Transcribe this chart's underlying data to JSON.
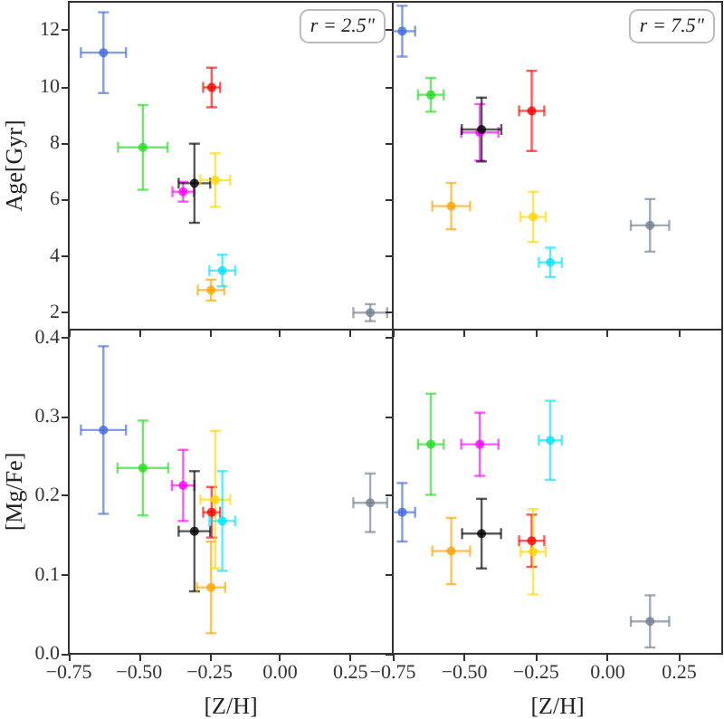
{
  "chart_data": [
    {
      "type": "scatter",
      "ylabel": "Age[Gyr]",
      "annotations": [
        "r = 2.5\""
      ],
      "marker": "circle",
      "tick_labels": "y",
      "xlim": [
        -0.75,
        0.4
      ],
      "ylim": [
        1.4,
        13
      ],
      "xticks": [
        -0.75,
        -0.5,
        -0.25,
        0,
        0.25
      ],
      "yticks": [
        2,
        4,
        6,
        8,
        10,
        12
      ],
      "series": [
        {
          "color": "#4169e1",
          "x": [
            -0.627
          ],
          "values": [
            11.2
          ],
          "errors": [
            1.43
          ],
          "xerrors": [
            0.08
          ]
        },
        {
          "color": "#22dd22",
          "x": [
            -0.487
          ],
          "values": [
            7.85
          ],
          "errors": [
            1.5
          ],
          "xerrors": [
            0.088
          ]
        },
        {
          "color": "#ff00ff",
          "x": [
            -0.344
          ],
          "values": [
            6.28
          ],
          "errors": [
            0.35
          ],
          "xerrors": [
            0.038
          ]
        },
        {
          "color": "#ff0000",
          "x": [
            -0.243
          ],
          "values": [
            9.97
          ],
          "errors": [
            0.7
          ],
          "xerrors": [
            0.03
          ]
        },
        {
          "color": "#000000",
          "x": [
            -0.304
          ],
          "values": [
            6.58
          ],
          "errors": [
            1.4
          ],
          "xerrors": [
            0.056
          ]
        },
        {
          "color": "#ffa500",
          "x": [
            -0.245
          ],
          "values": [
            2.8
          ],
          "errors": [
            0.37
          ],
          "xerrors": [
            0.047
          ]
        },
        {
          "color": "#ffd700",
          "x": [
            -0.23
          ],
          "values": [
            6.69
          ],
          "errors": [
            0.95
          ],
          "xerrors": [
            0.053
          ]
        },
        {
          "color": "#00e5ff",
          "x": [
            -0.205
          ],
          "values": [
            3.49
          ],
          "errors": [
            0.56
          ],
          "xerrors": [
            0.046
          ]
        },
        {
          "color": "#708090",
          "x": [
            0.32
          ],
          "values": [
            2.0
          ],
          "errors": [
            0.3
          ],
          "xerrors": [
            0.06
          ]
        }
      ]
    },
    {
      "type": "scatter",
      "annotations": [
        "r = 7.5\""
      ],
      "marker": "circle",
      "tick_labels": false,
      "xlim": [
        -0.75,
        0.4
      ],
      "ylim": [
        1.4,
        13
      ],
      "xticks": [
        -0.75,
        -0.5,
        -0.25,
        0,
        0.25
      ],
      "yticks": [
        2,
        4,
        6,
        8,
        10,
        12
      ],
      "series": [
        {
          "color": "#4169e1",
          "x": [
            -0.717
          ],
          "values": [
            11.96
          ],
          "errors": [
            0.9
          ],
          "xerrors": [
            0.045
          ]
        },
        {
          "color": "#22dd22",
          "x": [
            -0.617
          ],
          "values": [
            9.71
          ],
          "errors": [
            0.6
          ],
          "xerrors": [
            0.045
          ]
        },
        {
          "color": "#ff00ff",
          "x": [
            -0.446
          ],
          "values": [
            8.38
          ],
          "errors": [
            1.0
          ],
          "xerrors": [
            0.065
          ]
        },
        {
          "color": "#ff0000",
          "x": [
            -0.265
          ],
          "values": [
            9.14
          ],
          "errors": [
            1.42
          ],
          "xerrors": [
            0.044
          ]
        },
        {
          "color": "#000000",
          "x": [
            -0.44
          ],
          "values": [
            8.48
          ],
          "errors": [
            1.13
          ],
          "xerrors": [
            0.069
          ]
        },
        {
          "color": "#ffa500",
          "x": [
            -0.546
          ],
          "values": [
            5.77
          ],
          "errors": [
            0.82
          ],
          "xerrors": [
            0.066
          ]
        },
        {
          "color": "#ffd700",
          "x": [
            -0.26
          ],
          "values": [
            5.39
          ],
          "errors": [
            0.89
          ],
          "xerrors": [
            0.044
          ]
        },
        {
          "color": "#00e5ff",
          "x": [
            -0.2
          ],
          "values": [
            3.78
          ],
          "errors": [
            0.52
          ],
          "xerrors": [
            0.04
          ]
        },
        {
          "color": "#708090",
          "x": [
            0.148
          ],
          "values": [
            5.09
          ],
          "errors": [
            0.93
          ],
          "xerrors": [
            0.067
          ]
        }
      ]
    },
    {
      "type": "scatter",
      "xlabel": "[Z/H]",
      "ylabel": "[Mg/Fe]",
      "marker": "circle",
      "xlim": [
        -0.75,
        0.4
      ],
      "ylim": [
        0,
        0.41
      ],
      "xticks": [
        {
          "value": -0.75,
          "label": "−0.75"
        },
        {
          "value": -0.5,
          "label": "−0.50"
        },
        {
          "value": -0.25,
          "label": "−0.25"
        },
        {
          "value": 0,
          "label": "0.00"
        },
        {
          "value": 0.25,
          "label": "0.25"
        }
      ],
      "yticks": [
        {
          "value": 0,
          "label": "0.0"
        },
        0.1,
        0.2,
        0.3,
        0.4
      ],
      "series": [
        {
          "color": "#4169e1",
          "x": [
            -0.627
          ],
          "values": [
            0.283
          ],
          "errors": [
            0.106
          ],
          "xerrors": [
            0.08
          ]
        },
        {
          "color": "#22dd22",
          "x": [
            -0.487
          ],
          "values": [
            0.235
          ],
          "errors": [
            0.06
          ],
          "xerrors": [
            0.09
          ]
        },
        {
          "color": "#ff00ff",
          "x": [
            -0.344
          ],
          "values": [
            0.213
          ],
          "errors": [
            0.045
          ],
          "xerrors": [
            0.04
          ]
        },
        {
          "color": "#ff0000",
          "x": [
            -0.243
          ],
          "values": [
            0.179
          ],
          "errors": [
            0.032
          ],
          "xerrors": [
            0.03
          ]
        },
        {
          "color": "#000000",
          "x": [
            -0.304
          ],
          "values": [
            0.155
          ],
          "errors": [
            0.076
          ],
          "xerrors": [
            0.056
          ]
        },
        {
          "color": "#ffa500",
          "x": [
            -0.245
          ],
          "values": [
            0.084
          ],
          "errors": [
            0.058
          ],
          "xerrors": [
            0.05
          ]
        },
        {
          "color": "#ffd700",
          "x": [
            -0.23
          ],
          "values": [
            0.195
          ],
          "errors": [
            0.087
          ],
          "xerrors": [
            0.053
          ]
        },
        {
          "color": "#00e5ff",
          "x": [
            -0.205
          ],
          "values": [
            0.168
          ],
          "errors": [
            0.063
          ],
          "xerrors": [
            0.046
          ]
        },
        {
          "color": "#708090",
          "x": [
            0.32
          ],
          "values": [
            0.191
          ],
          "errors": [
            0.037
          ],
          "xerrors": [
            0.06
          ]
        }
      ]
    },
    {
      "type": "scatter",
      "xlabel": "[Z/H]",
      "marker": "circle",
      "tick_labels": "x",
      "xlim": [
        -0.75,
        0.4
      ],
      "ylim": [
        0,
        0.41
      ],
      "xticks": [
        {
          "value": -0.75,
          "label": "−0.75"
        },
        {
          "value": -0.5,
          "label": "−0.50"
        },
        {
          "value": -0.25,
          "label": "−0.25"
        },
        {
          "value": 0,
          "label": "0.00"
        },
        {
          "value": 0.25,
          "label": "0.25"
        }
      ],
      "yticks": [
        0,
        0.1,
        0.2,
        0.3,
        0.4
      ],
      "series": [
        {
          "color": "#4169e1",
          "x": [
            -0.717
          ],
          "values": [
            0.179
          ],
          "errors": [
            0.037
          ],
          "xerrors": [
            0.045
          ]
        },
        {
          "color": "#22dd22",
          "x": [
            -0.617
          ],
          "values": [
            0.265
          ],
          "errors": [
            0.064
          ],
          "xerrors": [
            0.045
          ]
        },
        {
          "color": "#ff00ff",
          "x": [
            -0.446
          ],
          "values": [
            0.265
          ],
          "errors": [
            0.04
          ],
          "xerrors": [
            0.065
          ]
        },
        {
          "color": "#ff0000",
          "x": [
            -0.265
          ],
          "values": [
            0.143
          ],
          "errors": [
            0.033
          ],
          "xerrors": [
            0.044
          ]
        },
        {
          "color": "#000000",
          "x": [
            -0.44
          ],
          "values": [
            0.152
          ],
          "errors": [
            0.044
          ],
          "xerrors": [
            0.068
          ]
        },
        {
          "color": "#ffa500",
          "x": [
            -0.546
          ],
          "values": [
            0.13
          ],
          "errors": [
            0.042
          ],
          "xerrors": [
            0.066
          ]
        },
        {
          "color": "#ffd700",
          "x": [
            -0.26
          ],
          "values": [
            0.129
          ],
          "errors": [
            0.054
          ],
          "xerrors": [
            0.044
          ]
        },
        {
          "color": "#00e5ff",
          "x": [
            -0.2
          ],
          "values": [
            0.27
          ],
          "errors": [
            0.05
          ],
          "xerrors": [
            0.04
          ]
        },
        {
          "color": "#708090",
          "x": [
            0.148
          ],
          "values": [
            0.041
          ],
          "errors": [
            0.033
          ],
          "xerrors": [
            0.067
          ]
        }
      ]
    }
  ]
}
